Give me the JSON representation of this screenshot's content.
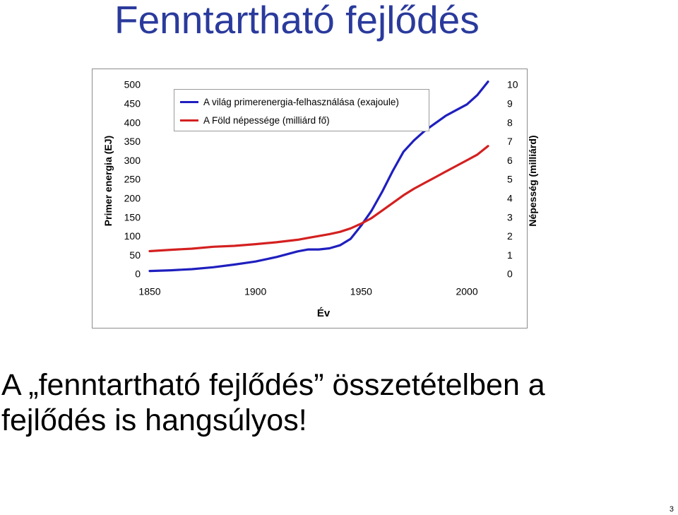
{
  "slide": {
    "title": "Fenntartható fejlődés",
    "bottom_line1": "A „fenntartható fejlődés” összetételben a",
    "bottom_line2": "fejlődés is hangsúlyos!",
    "page_number": "3"
  },
  "chart_data": {
    "type": "line",
    "xlabel": "Év",
    "ylabel_left": "Primer energia (EJ)",
    "ylabel_right": "Népesség (milliárd)",
    "x_ticks": [
      1850,
      1900,
      1950,
      2000
    ],
    "y_left_ticks": [
      0,
      50,
      100,
      150,
      200,
      250,
      300,
      350,
      400,
      450,
      500
    ],
    "y_right_ticks": [
      0,
      1,
      2,
      3,
      4,
      5,
      6,
      7,
      8,
      9,
      10
    ],
    "xlim": [
      1850,
      2010
    ],
    "ylim_left": [
      0,
      500
    ],
    "ylim_right": [
      0,
      10
    ],
    "grid": false,
    "legend_position": "top-left",
    "series": [
      {
        "name": "A világ primerenergia-felhasználása (exajoule)",
        "color": "#1f1fbf",
        "axis": "left",
        "x": [
          1850,
          1860,
          1870,
          1880,
          1890,
          1900,
          1910,
          1920,
          1925,
          1930,
          1935,
          1940,
          1945,
          1950,
          1955,
          1960,
          1965,
          1970,
          1975,
          1980,
          1985,
          1990,
          1995,
          2000,
          2005,
          2010
        ],
        "values": [
          10,
          12,
          15,
          20,
          27,
          35,
          47,
          62,
          67,
          67,
          70,
          78,
          95,
          130,
          170,
          220,
          275,
          325,
          355,
          380,
          400,
          420,
          435,
          450,
          475,
          510
        ]
      },
      {
        "name": "A Föld népessége (milliárd fő)",
        "color": "#d42020",
        "axis": "right",
        "x": [
          1850,
          1860,
          1870,
          1880,
          1890,
          1900,
          1910,
          1920,
          1925,
          1930,
          1935,
          1940,
          1945,
          1950,
          1955,
          1960,
          1965,
          1970,
          1975,
          1980,
          1985,
          1990,
          1995,
          2000,
          2005,
          2010
        ],
        "values": [
          1.25,
          1.32,
          1.38,
          1.48,
          1.53,
          1.62,
          1.72,
          1.85,
          1.95,
          2.05,
          2.15,
          2.27,
          2.45,
          2.7,
          3.0,
          3.4,
          3.8,
          4.2,
          4.55,
          4.85,
          5.15,
          5.45,
          5.75,
          6.05,
          6.35,
          6.8
        ]
      }
    ]
  }
}
